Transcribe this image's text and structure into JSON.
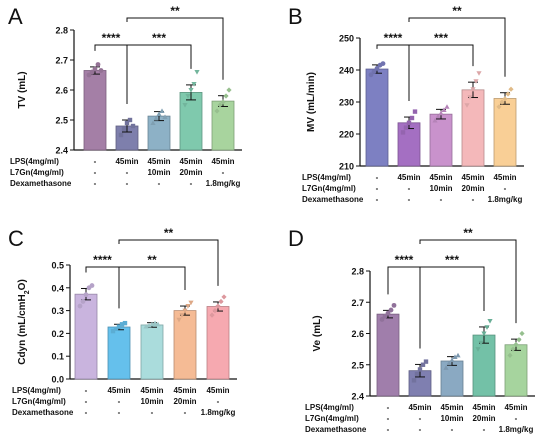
{
  "treatment_rows": [
    "LPS(4mg/ml)",
    "L7Gn(4mg/ml)",
    "Dexamethasone"
  ],
  "treatment_cells": [
    [
      "-",
      "-",
      "-"
    ],
    [
      "45min",
      "-",
      "-"
    ],
    [
      "45min",
      "10min",
      "-"
    ],
    [
      "45min",
      "20min",
      "-"
    ],
    [
      "45min",
      "-",
      "1.8mg/kg"
    ]
  ],
  "chart_data": [
    {
      "panel": "A",
      "type": "bar",
      "ylabel": "TV (mL)",
      "ylim": [
        2.4,
        2.8
      ],
      "yticks": [
        2.4,
        2.5,
        2.6,
        2.7,
        2.8
      ],
      "tick_labels": [
        "2.4",
        "2.5",
        "2.6",
        "2.7",
        "2.8"
      ],
      "values": [
        2.665,
        2.48,
        2.513,
        2.592,
        2.563
      ],
      "errors": [
        0.012,
        0.02,
        0.015,
        0.025,
        0.018
      ],
      "points": [
        [
          2.65,
          2.66,
          2.67,
          2.685,
          2.665
        ],
        [
          2.45,
          2.47,
          2.49,
          2.5,
          2.48
        ],
        [
          2.49,
          2.505,
          2.52,
          2.53,
          2.51
        ],
        [
          2.55,
          2.58,
          2.6,
          2.62,
          2.66
        ],
        [
          2.53,
          2.55,
          2.56,
          2.58,
          2.6
        ]
      ],
      "colors": [
        "#a47fa6",
        "#7e7fac",
        "#8db1c6",
        "#7fc9ad",
        "#a8d49e"
      ],
      "significance": [
        {
          "from": 0,
          "to": 1,
          "label": "****",
          "level": 0
        },
        {
          "from": 1,
          "to": 3,
          "label": "***",
          "level": 0
        },
        {
          "from": 1,
          "to": 4,
          "label": "**",
          "level": 1
        }
      ]
    },
    {
      "panel": "B",
      "type": "bar",
      "ylabel": "MV (mL/min)",
      "ylim": [
        210,
        250
      ],
      "yticks": [
        210,
        220,
        230,
        240,
        250
      ],
      "tick_labels": [
        "210",
        "220",
        "230",
        "240",
        "250"
      ],
      "values": [
        240.3,
        223.5,
        226.2,
        233.8,
        231.1
      ],
      "errors": [
        1.3,
        1.8,
        1.5,
        2.4,
        1.8
      ],
      "points": [
        [
          238.5,
          239.5,
          240.5,
          241.5,
          242
        ],
        [
          220.5,
          222,
          223.5,
          225,
          227
        ],
        [
          224.2,
          225.5,
          226.5,
          227.5,
          228.5
        ],
        [
          229,
          231.5,
          234,
          236.5,
          239
        ],
        [
          228.5,
          230,
          231,
          232.5,
          234
        ]
      ],
      "colors": [
        "#7d80c2",
        "#a46fc2",
        "#c992cc",
        "#f4b8ba",
        "#f9cf96"
      ],
      "significance": [
        {
          "from": 0,
          "to": 1,
          "label": "****",
          "level": 0
        },
        {
          "from": 1,
          "to": 3,
          "label": "***",
          "level": 0
        },
        {
          "from": 1,
          "to": 4,
          "label": "**",
          "level": 1
        }
      ]
    },
    {
      "panel": "C",
      "type": "bar",
      "ylabel": "Cdyn (mL/cmH2O)",
      "ylim": [
        0,
        0.5
      ],
      "yticks": [
        0,
        0.1,
        0.2,
        0.3,
        0.4,
        0.5
      ],
      "tick_labels": [
        "0.0",
        "0.1",
        "0.2",
        "0.3",
        "0.4",
        "0.5"
      ],
      "values": [
        0.372,
        0.228,
        0.237,
        0.3,
        0.318
      ],
      "errors": [
        0.025,
        0.012,
        0.01,
        0.02,
        0.02
      ],
      "points": [
        [
          0.32,
          0.34,
          0.37,
          0.4,
          0.41
        ],
        [
          0.21,
          0.22,
          0.23,
          0.24,
          0.245
        ],
        [
          0.23,
          0.235,
          0.24,
          0.245,
          0.24
        ],
        [
          0.26,
          0.28,
          0.3,
          0.32,
          0.335
        ],
        [
          0.28,
          0.3,
          0.32,
          0.34,
          0.36
        ]
      ],
      "colors": [
        "#c9b4de",
        "#65c0ec",
        "#aadcdc",
        "#f5bb95",
        "#f6a9b0"
      ],
      "significance": [
        {
          "from": 0,
          "to": 1,
          "label": "****",
          "level": 0
        },
        {
          "from": 1,
          "to": 3,
          "label": "**",
          "level": 0
        },
        {
          "from": 1,
          "to": 4,
          "label": "**",
          "level": 1
        }
      ]
    },
    {
      "panel": "D",
      "type": "bar",
      "ylabel": "Ve (mL)",
      "ylim": [
        2.4,
        2.8
      ],
      "yticks": [
        2.4,
        2.5,
        2.6,
        2.7,
        2.8
      ],
      "tick_labels": [
        "2.4",
        "2.5",
        "2.6",
        "2.7",
        "2.8"
      ],
      "values": [
        2.662,
        2.481,
        2.512,
        2.595,
        2.564
      ],
      "errors": [
        0.012,
        0.02,
        0.014,
        0.026,
        0.018
      ],
      "points": [
        [
          2.645,
          2.655,
          2.665,
          2.675,
          2.69
        ],
        [
          2.45,
          2.47,
          2.485,
          2.5,
          2.51
        ],
        [
          2.49,
          2.505,
          2.515,
          2.525,
          2.53
        ],
        [
          2.55,
          2.57,
          2.6,
          2.62,
          2.64
        ],
        [
          2.53,
          2.55,
          2.565,
          2.58,
          2.6
        ]
      ],
      "colors": [
        "#a07eab",
        "#7f7fb0",
        "#8aa9c2",
        "#73c1a7",
        "#a6d49e"
      ],
      "significance": [
        {
          "from": 0,
          "to": 1,
          "label": "****",
          "level": 0
        },
        {
          "from": 1,
          "to": 3,
          "label": "***",
          "level": 0
        },
        {
          "from": 1,
          "to": 4,
          "label": "**",
          "level": 1
        }
      ]
    }
  ]
}
